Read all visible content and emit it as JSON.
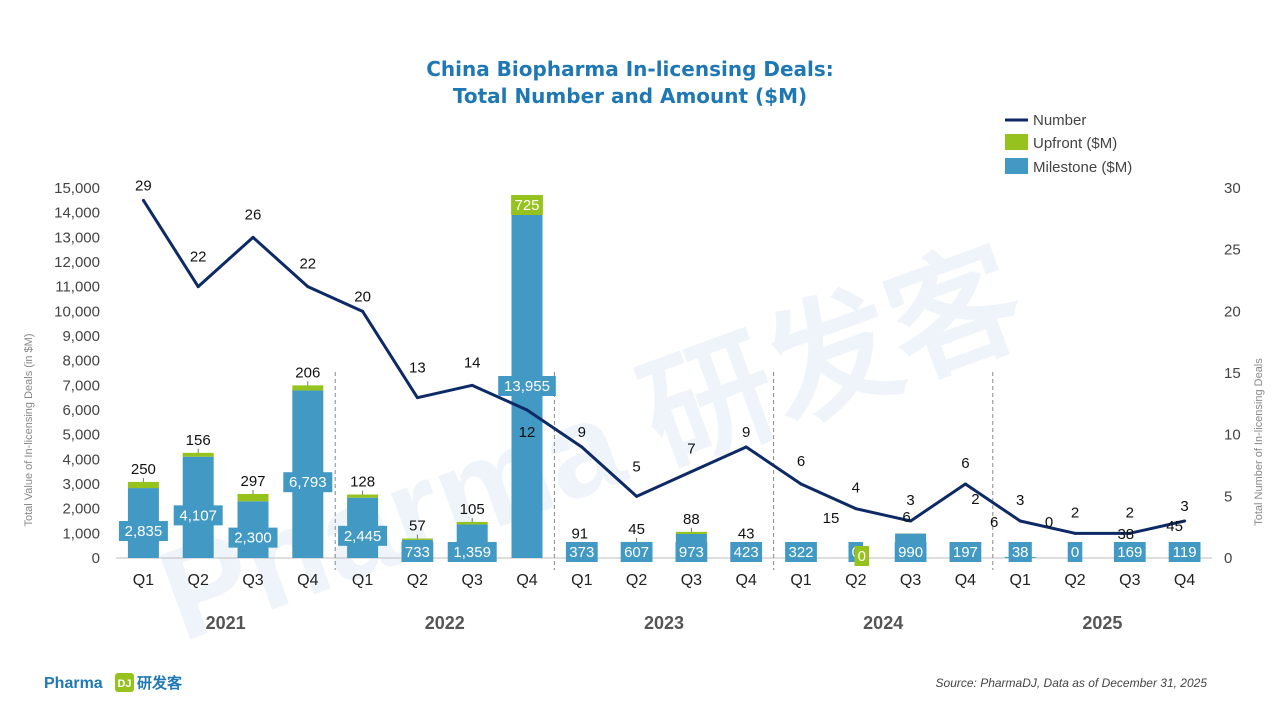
{
  "chart_data": {
    "type": "bar+line",
    "title_line1": "China Biopharma In-licensing Deals:",
    "title_line2": "Total Number and Amount ($M)",
    "y_left_label": "Total Value of In-licensing Deals (in $M)",
    "y_right_label": "Total Number of In-licensing Deals",
    "y_left_range": [
      0,
      15000
    ],
    "y_left_ticks": [
      "0",
      "1,000",
      "2,000",
      "3,000",
      "4,000",
      "5,000",
      "6,000",
      "7,000",
      "8,000",
      "9,000",
      "10,000",
      "11,000",
      "12,000",
      "13,000",
      "14,000",
      "15,000"
    ],
    "y_right_range": [
      0,
      30
    ],
    "y_right_ticks": [
      "0",
      "5",
      "10",
      "15",
      "20",
      "25",
      "30"
    ],
    "years": [
      "2021",
      "2022",
      "2023",
      "2024",
      "2025"
    ],
    "quarters": [
      "Q1",
      "Q2",
      "Q3",
      "Q4"
    ],
    "categories": [
      "2021 Q1",
      "2021 Q2",
      "2021 Q3",
      "2021 Q4",
      "2022 Q1",
      "2022 Q2",
      "2022 Q3",
      "2022 Q4",
      "2023 Q1",
      "2023 Q2",
      "2023 Q3",
      "2023 Q4",
      "2024 Q1",
      "2024 Q2",
      "2024 Q3",
      "2024 Q4",
      "2025 Q1",
      "2025 Q2",
      "2025 Q3",
      "2025 Q4"
    ],
    "series": [
      {
        "name": "Milestone ($M)",
        "type": "bar",
        "color": "#4199c4",
        "values": [
          2835,
          4107,
          2300,
          6793,
          2445,
          733,
          1359,
          13955,
          373,
          607,
          973,
          423,
          322,
          0,
          990,
          197,
          38,
          0,
          169,
          119
        ],
        "labels": [
          "2,835",
          "4,107",
          "2,300",
          "6,793",
          "2,445",
          "733",
          "1,359",
          "13,955",
          "373",
          "607",
          "973",
          "423",
          "322",
          "0",
          "990",
          "197",
          "38",
          "0",
          "169",
          "119"
        ]
      },
      {
        "name": "Upfront ($M)",
        "type": "bar",
        "color": "#96c21d",
        "values": [
          250,
          156,
          297,
          206,
          128,
          57,
          105,
          725,
          91,
          45,
          88,
          43,
          15,
          0,
          6,
          2,
          6,
          0,
          38,
          45
        ],
        "labels": [
          "250",
          "156",
          "297",
          "206",
          "128",
          "57",
          "105",
          "725",
          "91",
          "45",
          "88",
          "43",
          "15",
          "0",
          "6",
          "2",
          "6",
          "0",
          "38",
          "45"
        ]
      },
      {
        "name": "Number",
        "type": "line",
        "color": "#0d2a66",
        "values": [
          29,
          22,
          26,
          22,
          20,
          13,
          14,
          12,
          9,
          5,
          7,
          9,
          6,
          4,
          3,
          6,
          3,
          2,
          2,
          3
        ],
        "labels": [
          "29",
          "22",
          "26",
          "22",
          "20",
          "13",
          "14",
          "12",
          "9",
          "5",
          "7",
          "9",
          "6",
          "4",
          "3",
          "6",
          "3",
          "2",
          "2",
          "3"
        ]
      }
    ],
    "legend": [
      "Number",
      "Upfront ($M)",
      "Milestone ($M)"
    ],
    "legend_position": "top-right"
  },
  "watermark": "Pharma 研发客",
  "source_text": "Source: PharmaDJ, Data as of December 31, 2025",
  "logo": {
    "text": "Pharma",
    "mark": "DJ",
    "suffix": "研发客"
  }
}
